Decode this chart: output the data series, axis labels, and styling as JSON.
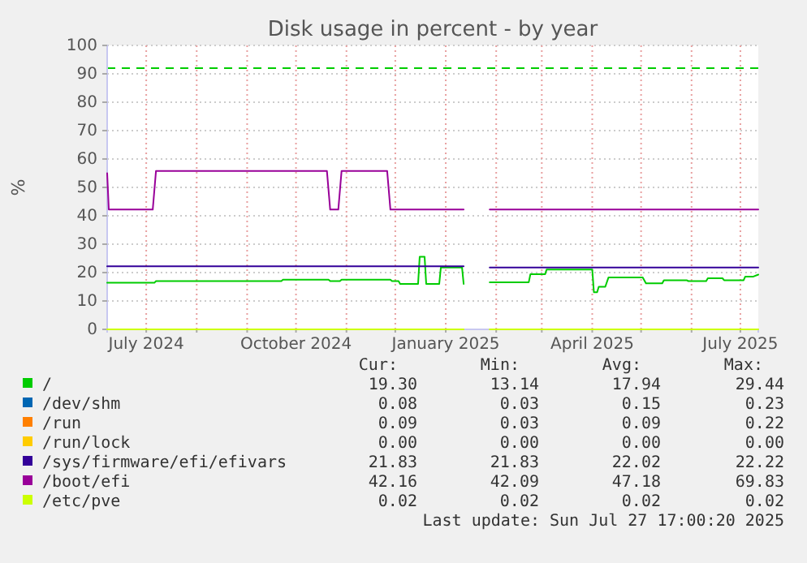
{
  "chart_data": {
    "type": "line",
    "title": "Disk usage in percent - by year",
    "ylabel": "%",
    "xlim": [
      "2024-06-22",
      "2025-07-27"
    ],
    "xticks": [
      {
        "value": "2024-07-16",
        "label": "July 2024"
      },
      {
        "value": "2024-08-16",
        "label": null
      },
      {
        "value": "2024-09-16",
        "label": null
      },
      {
        "value": "2024-10-16",
        "label": "October 2024"
      },
      {
        "value": "2024-11-16",
        "label": null
      },
      {
        "value": "2024-12-16",
        "label": null
      },
      {
        "value": "2025-01-16",
        "label": "January 2025"
      },
      {
        "value": "2025-02-16",
        "label": null
      },
      {
        "value": "2025-03-16",
        "label": null
      },
      {
        "value": "2025-04-16",
        "label": "April 2025"
      },
      {
        "value": "2025-05-16",
        "label": null
      },
      {
        "value": "2025-06-16",
        "label": null
      },
      {
        "value": "2025-07-16",
        "label": "July 2025"
      }
    ],
    "ylim": [
      0,
      100
    ],
    "yticks": [
      0,
      10,
      20,
      30,
      40,
      50,
      60,
      70,
      80,
      90,
      100
    ],
    "grid": true,
    "legend": "bottom",
    "line_style": "solid",
    "marker": "none",
    "ref_lines": [
      {
        "axis": "y",
        "value": 92,
        "color": "#00cc00",
        "line_style": "dashed"
      }
    ],
    "series": [
      {
        "name": "/",
        "color": "#00cc00",
        "x": [
          "2024-06-22",
          "2024-07-21",
          "2024-07-22",
          "2024-10-07",
          "2024-10-08",
          "2024-11-05",
          "2024-11-06",
          "2024-11-12",
          "2024-11-13",
          "2024-12-13",
          "2024-12-14",
          "2024-12-18",
          "2024-12-19",
          "2024-12-30",
          "2024-12-31",
          "2025-01-03",
          "2025-01-04",
          "2025-01-12",
          "2025-01-13",
          "2025-01-26",
          "2025-01-27",
          "2025-01-28",
          "2025-02-12",
          "2025-03-08",
          "2025-03-09",
          "2025-03-18",
          "2025-03-19",
          "2025-04-16",
          "2025-04-17",
          "2025-04-19",
          "2025-04-20",
          "2025-04-24",
          "2025-04-26",
          "2025-05-17",
          "2025-05-19",
          "2025-05-29",
          "2025-05-30",
          "2025-06-13",
          "2025-06-14",
          "2025-06-25",
          "2025-06-26",
          "2025-07-05",
          "2025-07-06",
          "2025-07-18",
          "2025-07-19",
          "2025-07-24",
          "2025-07-27"
        ],
        "values": [
          16.4,
          16.4,
          17,
          17,
          17.5,
          17.5,
          17,
          17,
          17.5,
          17.5,
          17,
          17,
          16,
          16,
          25.6,
          25.6,
          16,
          16,
          21.8,
          21.8,
          16,
          null,
          16.6,
          16.6,
          19.4,
          19.4,
          21.1,
          21.1,
          13.1,
          13.1,
          15,
          15,
          18.3,
          18.3,
          16.2,
          16.2,
          17.3,
          17.3,
          17,
          17,
          18,
          18,
          17.3,
          17.3,
          18.6,
          18.6,
          19.3
        ]
      },
      {
        "name": "/dev/shm",
        "color": "#0066b3"
      },
      {
        "name": "/run",
        "color": "#ff8000"
      },
      {
        "name": "/run/lock",
        "color": "#ffcc00"
      },
      {
        "name": "/sys/firmware/efi/efivars",
        "color": "#330099",
        "x": [
          "2024-06-22",
          "2025-01-27",
          "2025-01-28",
          "2025-02-12",
          "2025-07-27"
        ],
        "values": [
          22.2,
          22.2,
          null,
          21.8,
          21.8
        ]
      },
      {
        "name": "/boot/efi",
        "color": "#990099",
        "x": [
          "2024-06-22",
          "2024-06-23",
          "2024-07-20",
          "2024-07-22",
          "2024-11-04",
          "2024-11-06",
          "2024-11-11",
          "2024-11-13",
          "2024-12-11",
          "2024-12-13",
          "2025-01-27",
          "2025-01-28",
          "2025-02-12",
          "2025-07-27"
        ],
        "values": [
          55,
          42.2,
          42.2,
          55.8,
          55.8,
          42.2,
          42.2,
          55.8,
          55.8,
          42.2,
          42.2,
          null,
          42.2,
          42.2
        ]
      },
      {
        "name": "/etc/pve",
        "color": "#ccff00",
        "x": [
          "2024-06-22",
          "2025-01-27",
          "2025-01-28",
          "2025-02-12",
          "2025-07-27"
        ],
        "values": [
          0,
          0,
          null,
          0,
          0
        ]
      }
    ],
    "annotations": [
      "Cur:",
      "Min:",
      "Avg:",
      "Max:",
      "19.30",
      "13.14",
      "17.94",
      "29.44",
      "0.08",
      "0.03",
      "0.15",
      "0.23",
      "0.09",
      "0.03",
      "0.09",
      "0.22",
      "0.00",
      "0.00",
      "0.00",
      "0.00",
      "21.83",
      "21.83",
      "22.02",
      "22.22",
      "42.16",
      "42.09",
      "47.18",
      "69.83",
      "0.02",
      "0.02",
      "0.02",
      "0.02",
      "Last update: Sun Jul 27 17:00:20 2025"
    ]
  }
}
